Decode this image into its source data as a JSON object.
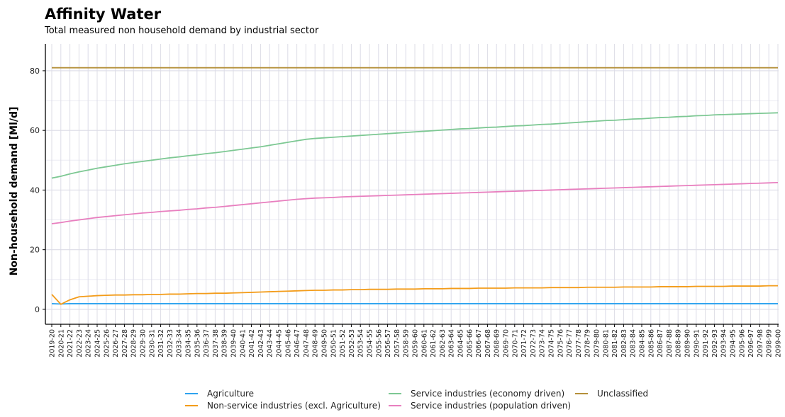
{
  "chart_data": {
    "type": "line",
    "title": "Affinity Water",
    "subtitle": "Total measured non household demand by industrial sector",
    "xlabel": "",
    "ylabel": "Non-household demand [Ml/d]",
    "ylim": [
      -5,
      89
    ],
    "yticks": [
      0,
      20,
      40,
      60,
      80
    ],
    "grid": true,
    "legend_position": "bottom",
    "x": [
      "2019-20",
      "2020-21",
      "2021-22",
      "2022-23",
      "2023-24",
      "2024-25",
      "2025-26",
      "2026-27",
      "2027-28",
      "2028-29",
      "2029-30",
      "2030-31",
      "2031-32",
      "2032-33",
      "2033-34",
      "2034-35",
      "2035-36",
      "2036-37",
      "2037-38",
      "2038-39",
      "2039-40",
      "2040-41",
      "2041-42",
      "2042-43",
      "2043-44",
      "2044-45",
      "2045-46",
      "2046-47",
      "2047-48",
      "2048-49",
      "2049-50",
      "2050-51",
      "2051-52",
      "2052-53",
      "2053-54",
      "2054-55",
      "2055-56",
      "2056-57",
      "2057-58",
      "2058-59",
      "2059-60",
      "2060-61",
      "2061-62",
      "2062-63",
      "2063-64",
      "2064-65",
      "2065-66",
      "2066-67",
      "2067-68",
      "2068-69",
      "2069-70",
      "2070-71",
      "2071-72",
      "2072-73",
      "2073-74",
      "2074-75",
      "2075-76",
      "2076-77",
      "2077-78",
      "2078-79",
      "2079-80",
      "2080-81",
      "2081-82",
      "2082-83",
      "2083-84",
      "2084-85",
      "2085-86",
      "2086-87",
      "2087-88",
      "2088-89",
      "2089-90",
      "2090-91",
      "2091-92",
      "2092-93",
      "2093-94",
      "2094-95",
      "2095-96",
      "2096-97",
      "2097-98",
      "2098-99",
      "2099-00"
    ],
    "series": [
      {
        "name": "Agriculture",
        "color": "#2ea3ef",
        "values": [
          1.9,
          1.8,
          1.9,
          1.9,
          1.9,
          1.9,
          1.9,
          1.9,
          1.9,
          1.9,
          1.9,
          1.9,
          1.9,
          1.9,
          1.9,
          1.9,
          1.9,
          1.9,
          1.9,
          1.9,
          1.9,
          1.9,
          1.9,
          1.9,
          1.9,
          1.9,
          1.9,
          1.9,
          1.9,
          1.9,
          1.9,
          1.9,
          1.9,
          1.9,
          1.9,
          1.9,
          1.9,
          1.9,
          1.9,
          1.9,
          1.9,
          1.9,
          1.9,
          1.9,
          1.9,
          1.9,
          1.9,
          1.9,
          1.9,
          1.9,
          1.9,
          1.9,
          1.9,
          1.9,
          1.9,
          1.9,
          1.9,
          1.9,
          1.9,
          1.9,
          1.9,
          1.9,
          1.9,
          1.9,
          1.9,
          1.9,
          1.9,
          1.9,
          1.9,
          1.9,
          1.9,
          1.9,
          1.9,
          1.9,
          1.9,
          1.9,
          1.9,
          1.9,
          1.9,
          1.9,
          1.9
        ]
      },
      {
        "name": "Non-service industries (excl. Agriculture)",
        "color": "#f39c1a",
        "values": [
          5.0,
          1.7,
          3.2,
          4.2,
          4.4,
          4.6,
          4.7,
          4.8,
          4.8,
          4.9,
          4.9,
          5.0,
          5.0,
          5.1,
          5.1,
          5.2,
          5.3,
          5.3,
          5.4,
          5.4,
          5.5,
          5.6,
          5.7,
          5.8,
          5.9,
          6.0,
          6.1,
          6.2,
          6.3,
          6.4,
          6.4,
          6.5,
          6.5,
          6.6,
          6.6,
          6.7,
          6.7,
          6.7,
          6.8,
          6.8,
          6.8,
          6.9,
          6.9,
          6.9,
          7.0,
          7.0,
          7.0,
          7.1,
          7.1,
          7.1,
          7.1,
          7.2,
          7.2,
          7.2,
          7.2,
          7.3,
          7.3,
          7.3,
          7.3,
          7.4,
          7.4,
          7.4,
          7.4,
          7.5,
          7.5,
          7.5,
          7.5,
          7.6,
          7.6,
          7.6,
          7.6,
          7.7,
          7.7,
          7.7,
          7.7,
          7.8,
          7.8,
          7.8,
          7.8,
          7.9,
          7.9
        ]
      },
      {
        "name": "Service industries (economy driven)",
        "color": "#7dc893",
        "values": [
          44.0,
          44.6,
          45.4,
          46.1,
          46.7,
          47.3,
          47.8,
          48.3,
          48.8,
          49.2,
          49.6,
          50.0,
          50.4,
          50.8,
          51.1,
          51.5,
          51.8,
          52.2,
          52.5,
          52.9,
          53.3,
          53.7,
          54.1,
          54.5,
          55.0,
          55.5,
          56.0,
          56.5,
          57.0,
          57.3,
          57.5,
          57.7,
          57.9,
          58.1,
          58.3,
          58.5,
          58.7,
          58.9,
          59.1,
          59.3,
          59.5,
          59.7,
          59.9,
          60.1,
          60.3,
          60.5,
          60.6,
          60.8,
          61.0,
          61.1,
          61.3,
          61.5,
          61.6,
          61.8,
          62.0,
          62.1,
          62.3,
          62.5,
          62.7,
          62.9,
          63.1,
          63.3,
          63.4,
          63.6,
          63.8,
          63.9,
          64.1,
          64.3,
          64.4,
          64.6,
          64.7,
          64.9,
          65.0,
          65.2,
          65.3,
          65.4,
          65.5,
          65.6,
          65.7,
          65.8,
          65.9
        ]
      },
      {
        "name": "Service industries (population driven)",
        "color": "#e87fbf",
        "values": [
          28.7,
          29.1,
          29.6,
          30.0,
          30.4,
          30.8,
          31.1,
          31.4,
          31.7,
          32.0,
          32.3,
          32.5,
          32.8,
          33.0,
          33.2,
          33.5,
          33.7,
          34.0,
          34.2,
          34.5,
          34.8,
          35.1,
          35.4,
          35.7,
          36.0,
          36.3,
          36.6,
          36.9,
          37.1,
          37.3,
          37.4,
          37.5,
          37.7,
          37.8,
          37.9,
          38.0,
          38.1,
          38.2,
          38.3,
          38.4,
          38.5,
          38.6,
          38.7,
          38.8,
          38.9,
          39.0,
          39.1,
          39.2,
          39.3,
          39.4,
          39.5,
          39.6,
          39.7,
          39.8,
          39.9,
          40.0,
          40.1,
          40.2,
          40.3,
          40.4,
          40.5,
          40.6,
          40.7,
          40.8,
          40.9,
          41.0,
          41.1,
          41.2,
          41.3,
          41.4,
          41.5,
          41.6,
          41.7,
          41.8,
          41.9,
          42.0,
          42.1,
          42.2,
          42.3,
          42.4,
          42.5
        ]
      },
      {
        "name": "Unclassified",
        "color": "#b5903a",
        "values": [
          81,
          81,
          81,
          81,
          81,
          81,
          81,
          81,
          81,
          81,
          81,
          81,
          81,
          81,
          81,
          81,
          81,
          81,
          81,
          81,
          81,
          81,
          81,
          81,
          81,
          81,
          81,
          81,
          81,
          81,
          81,
          81,
          81,
          81,
          81,
          81,
          81,
          81,
          81,
          81,
          81,
          81,
          81,
          81,
          81,
          81,
          81,
          81,
          81,
          81,
          81,
          81,
          81,
          81,
          81,
          81,
          81,
          81,
          81,
          81,
          81,
          81,
          81,
          81,
          81,
          81,
          81,
          81,
          81,
          81,
          81,
          81,
          81,
          81,
          81,
          81,
          81,
          81,
          81,
          81,
          81
        ]
      }
    ]
  }
}
